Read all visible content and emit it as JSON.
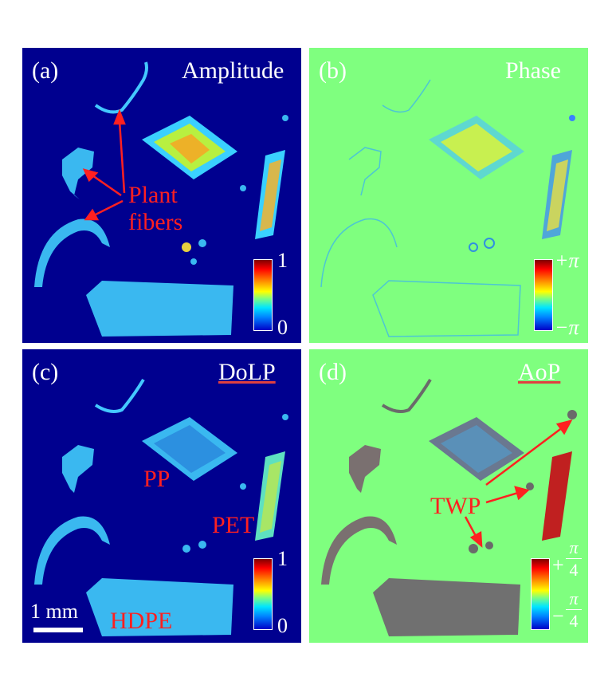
{
  "panels": {
    "a": {
      "tag": "(a)",
      "title": "Amplitude",
      "cb_max": "1",
      "cb_min": "0",
      "annotation_line1": "Plant",
      "annotation_line2": "fibers"
    },
    "b": {
      "tag": "(b)",
      "title": "Phase",
      "cb_max": "+π",
      "cb_min": "−π"
    },
    "c": {
      "tag": "(c)",
      "title": "DoLP",
      "cb_max": "1",
      "cb_min": "0",
      "label_pp": "PP",
      "label_pet": "PET",
      "label_hdpe": "HDPE",
      "scale_bar": "1 mm"
    },
    "d": {
      "tag": "(d)",
      "title": "AoP",
      "label_twp": "TWP",
      "cb_max_sign": "+",
      "cb_min_sign": "−",
      "cb_num": "π",
      "cb_den": "4"
    }
  },
  "colors": {
    "dark_background": "#00008f",
    "phase_background": "#7fff7f",
    "annotation_red": "#ff2020"
  }
}
